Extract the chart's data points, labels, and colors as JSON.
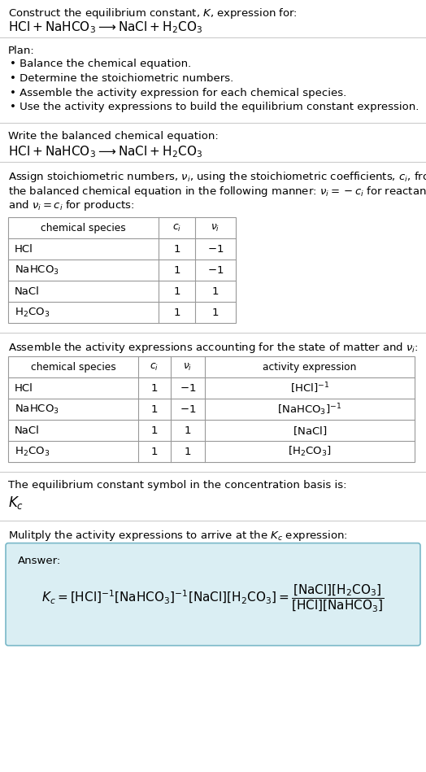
{
  "title_line1": "Construct the equilibrium constant, $K$, expression for:",
  "title_line2": "$\\mathrm{HCl + NaHCO_3 \\longrightarrow NaCl + H_2CO_3}$",
  "plan_header": "Plan:",
  "plan_bullets": [
    "• Balance the chemical equation.",
    "• Determine the stoichiometric numbers.",
    "• Assemble the activity expression for each chemical species.",
    "• Use the activity expressions to build the equilibrium constant expression."
  ],
  "section2_header": "Write the balanced chemical equation:",
  "section2_eq": "$\\mathrm{HCl + NaHCO_3 \\longrightarrow NaCl + H_2CO_3}$",
  "section3_header_parts": [
    "Assign stoichiometric numbers, $\\nu_i$, using the stoichiometric coefficients, $c_i$, from",
    "the balanced chemical equation in the following manner: $\\nu_i = -c_i$ for reactants",
    "and $\\nu_i = c_i$ for products:"
  ],
  "table1_headers": [
    "chemical species",
    "$c_i$",
    "$\\nu_i$"
  ],
  "table1_rows": [
    [
      "HCl",
      "1",
      "$-1$"
    ],
    [
      "$\\mathrm{NaHCO_3}$",
      "1",
      "$-1$"
    ],
    [
      "NaCl",
      "1",
      "1"
    ],
    [
      "$\\mathrm{H_2CO_3}$",
      "1",
      "1"
    ]
  ],
  "section4_header": "Assemble the activity expressions accounting for the state of matter and $\\nu_i$:",
  "table2_headers": [
    "chemical species",
    "$c_i$",
    "$\\nu_i$",
    "activity expression"
  ],
  "table2_rows": [
    [
      "HCl",
      "1",
      "$-1$",
      "$[\\mathrm{HCl}]^{-1}$"
    ],
    [
      "$\\mathrm{NaHCO_3}$",
      "1",
      "$-1$",
      "$[\\mathrm{NaHCO_3}]^{-1}$"
    ],
    [
      "NaCl",
      "1",
      "1",
      "$[\\mathrm{NaCl}]$"
    ],
    [
      "$\\mathrm{H_2CO_3}$",
      "1",
      "1",
      "$[\\mathrm{H_2CO_3}]$"
    ]
  ],
  "section5_line1": "The equilibrium constant symbol in the concentration basis is:",
  "section5_line2": "$K_c$",
  "section6_header": "Mulitply the activity expressions to arrive at the $K_c$ expression:",
  "answer_label": "Answer:",
  "answer_eq": "$K_c = [\\mathrm{HCl}]^{-1} [\\mathrm{NaHCO_3}]^{-1} [\\mathrm{NaCl}][\\mathrm{H_2CO_3}] = \\dfrac{[\\mathrm{NaCl}][\\mathrm{H_2CO_3}]}{[\\mathrm{HCl}][\\mathrm{NaHCO_3}]}$",
  "bg_color": "#ffffff",
  "text_color": "#000000",
  "table_border_color": "#999999",
  "answer_box_fill": "#daeef3",
  "answer_box_border": "#7ab8c8",
  "font_size": 9.5,
  "small_font": 8.8,
  "eq_font": 11.0
}
